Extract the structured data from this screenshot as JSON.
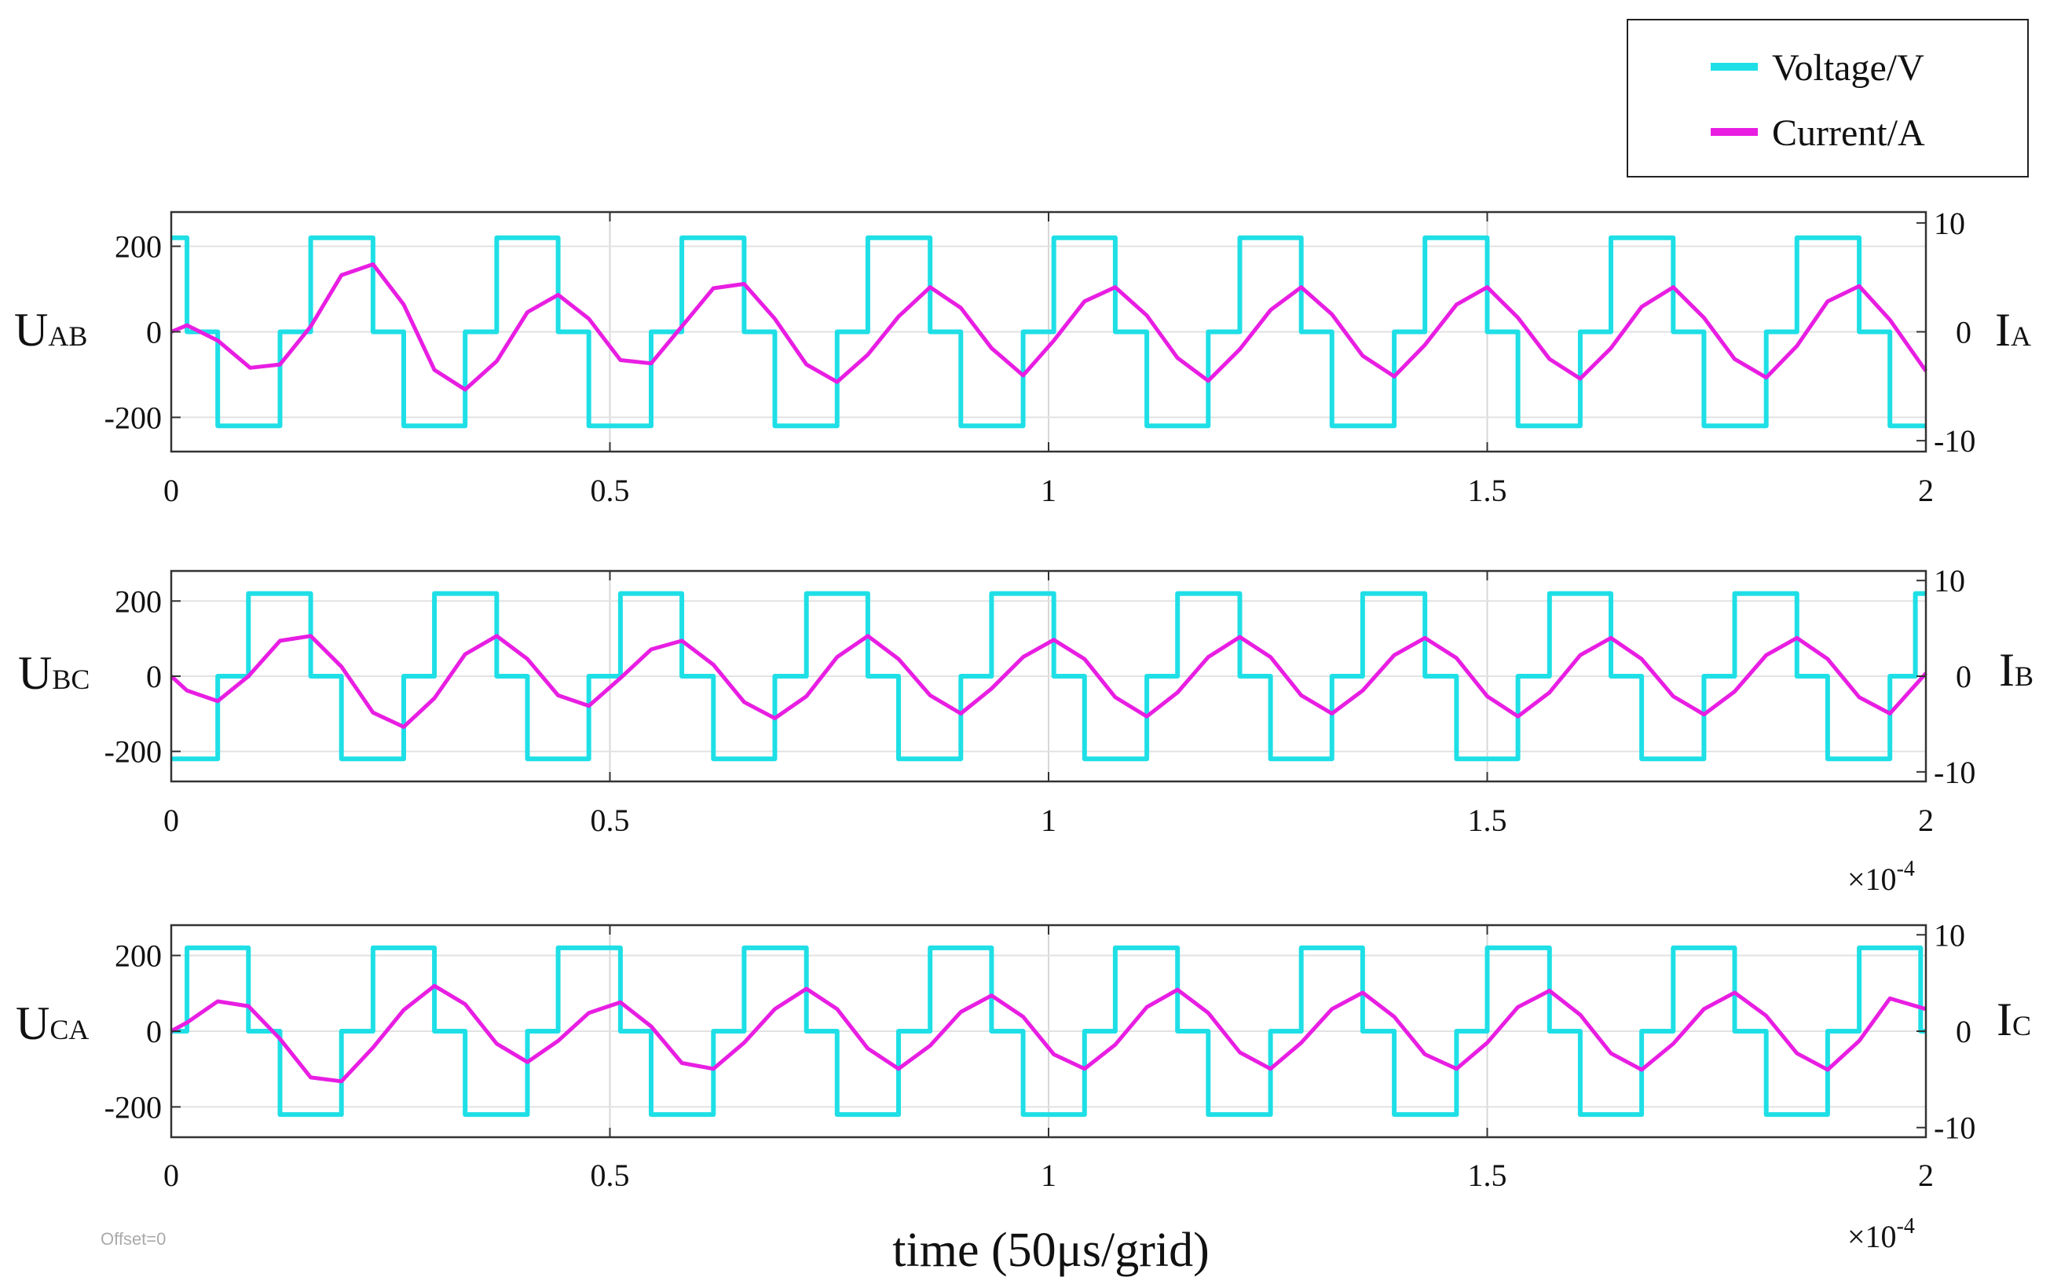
{
  "legend": [
    {
      "label": "Voltage/V",
      "color": "#1fdfe6"
    },
    {
      "label": "Current/A",
      "color": "#e81ee2"
    }
  ],
  "offset_text": "Offset=0",
  "x_multiplier": {
    "base": "×10",
    "exp": "-4"
  },
  "chart_data": {
    "type": "line",
    "xlabel": "time (50μs/grid)",
    "xlim": [
      0,
      2
    ],
    "x_ticks": [
      "0",
      "0.5",
      "1",
      "1.5",
      "2"
    ],
    "grid": true,
    "legend_position": "top-right",
    "panels": [
      {
        "ylabel_left": {
          "main": "U",
          "sub": "AB"
        },
        "ylabel_right": {
          "main": "I",
          "sub": "A"
        },
        "voltage_ticks": [
          "200",
          "0",
          "-200"
        ],
        "current_ticks": [
          "10",
          "0",
          "-10"
        ],
        "voltage_ylim": [
          -280,
          280
        ],
        "current_ylim": [
          -11,
          11
        ],
        "series": [
          {
            "name": "Voltage/V",
            "color": "#1fdfe6",
            "step": true,
            "x": [
              0,
              0.018,
              0.018,
              0.053,
              0.053,
              0.124,
              0.124,
              0.159,
              0.159,
              0.23,
              0.23,
              0.265,
              0.265,
              0.335,
              0.335,
              0.371,
              0.371,
              0.441,
              0.441,
              0.476,
              0.476,
              0.547,
              0.547,
              0.582,
              0.582,
              0.653,
              0.653,
              0.688,
              0.688,
              0.759,
              0.759,
              0.794,
              0.794,
              0.865,
              0.865,
              0.9,
              0.9,
              0.971,
              0.971,
              1.006,
              1.006,
              1.076,
              1.076,
              1.112,
              1.112,
              1.182,
              1.182,
              1.218,
              1.218,
              1.288,
              1.288,
              1.323,
              1.323,
              1.394,
              1.394,
              1.429,
              1.429,
              1.5,
              1.5,
              1.535,
              1.535,
              1.606,
              1.606,
              1.641,
              1.641,
              1.712,
              1.712,
              1.747,
              1.747,
              1.818,
              1.818,
              1.853,
              1.853,
              1.924,
              1.924,
              1.959,
              1.959,
              2.0
            ],
            "y": [
              220,
              220,
              0,
              0,
              -220,
              -220,
              0,
              0,
              220,
              220,
              0,
              0,
              -220,
              -220,
              0,
              0,
              220,
              220,
              0,
              0,
              -220,
              -220,
              0,
              0,
              220,
              220,
              0,
              0,
              -220,
              -220,
              0,
              0,
              220,
              220,
              0,
              0,
              -220,
              -220,
              0,
              0,
              220,
              220,
              0,
              0,
              -220,
              -220,
              0,
              0,
              220,
              220,
              0,
              0,
              -220,
              -220,
              0,
              0,
              220,
              220,
              0,
              0,
              -220,
              -220,
              0,
              0,
              220,
              220,
              0,
              0,
              -220,
              -220,
              0,
              0,
              220,
              220,
              0,
              0,
              -220,
              -220
            ]
          },
          {
            "name": "Current/A",
            "color": "#e81ee2",
            "step": false,
            "x": [
              0,
              0.018,
              0.053,
              0.09,
              0.124,
              0.159,
              0.194,
              0.23,
              0.265,
              0.3,
              0.335,
              0.371,
              0.406,
              0.441,
              0.476,
              0.512,
              0.547,
              0.582,
              0.618,
              0.653,
              0.688,
              0.724,
              0.759,
              0.794,
              0.829,
              0.865,
              0.9,
              0.935,
              0.971,
              1.006,
              1.041,
              1.076,
              1.112,
              1.147,
              1.182,
              1.218,
              1.253,
              1.288,
              1.323,
              1.358,
              1.394,
              1.429,
              1.465,
              1.5,
              1.535,
              1.571,
              1.606,
              1.641,
              1.676,
              1.712,
              1.747,
              1.782,
              1.818,
              1.853,
              1.888,
              1.924,
              1.959,
              2.0
            ],
            "y": [
              0,
              0.6,
              -0.8,
              -3.3,
              -3.0,
              0.5,
              5.2,
              6.2,
              2.5,
              -3.5,
              -5.3,
              -2.7,
              1.8,
              3.4,
              1.2,
              -2.6,
              -2.9,
              0.5,
              4.0,
              4.4,
              1.2,
              -3.0,
              -4.6,
              -2.1,
              1.4,
              4.1,
              2.2,
              -1.5,
              -4.0,
              -0.8,
              2.8,
              4.1,
              1.5,
              -2.4,
              -4.5,
              -1.6,
              2.0,
              4.1,
              1.6,
              -2.2,
              -4.1,
              -1.2,
              2.5,
              4.1,
              1.3,
              -2.5,
              -4.3,
              -1.5,
              2.3,
              4.1,
              1.3,
              -2.5,
              -4.2,
              -1.3,
              2.8,
              4.2,
              1.1,
              -3.6
            ]
          }
        ]
      },
      {
        "ylabel_left": {
          "main": "U",
          "sub": "BC"
        },
        "ylabel_right": {
          "main": "I",
          "sub": "B"
        },
        "voltage_ticks": [
          "200",
          "0",
          "-200"
        ],
        "current_ticks": [
          "10",
          "0",
          "-10"
        ],
        "voltage_ylim": [
          -280,
          280
        ],
        "current_ylim": [
          -11,
          11
        ],
        "series": [
          {
            "name": "Voltage/V",
            "color": "#1fdfe6",
            "step": true,
            "x": [
              0,
              0.053,
              0.053,
              0.088,
              0.088,
              0.159,
              0.159,
              0.194,
              0.194,
              0.265,
              0.265,
              0.3,
              0.3,
              0.371,
              0.371,
              0.406,
              0.406,
              0.476,
              0.476,
              0.512,
              0.512,
              0.582,
              0.582,
              0.618,
              0.618,
              0.688,
              0.688,
              0.724,
              0.724,
              0.794,
              0.794,
              0.829,
              0.829,
              0.9,
              0.9,
              0.935,
              0.935,
              1.006,
              1.006,
              1.041,
              1.041,
              1.112,
              1.112,
              1.147,
              1.147,
              1.218,
              1.218,
              1.253,
              1.253,
              1.323,
              1.323,
              1.358,
              1.358,
              1.429,
              1.429,
              1.465,
              1.465,
              1.535,
              1.535,
              1.571,
              1.571,
              1.641,
              1.641,
              1.676,
              1.676,
              1.747,
              1.747,
              1.782,
              1.782,
              1.853,
              1.853,
              1.888,
              1.888,
              1.959,
              1.959,
              1.988,
              1.988,
              2.0
            ],
            "y": [
              -220,
              -220,
              0,
              0,
              220,
              220,
              0,
              0,
              -220,
              -220,
              0,
              0,
              220,
              220,
              0,
              0,
              -220,
              -220,
              0,
              0,
              220,
              220,
              0,
              0,
              -220,
              -220,
              0,
              0,
              220,
              220,
              0,
              0,
              -220,
              -220,
              0,
              0,
              220,
              220,
              0,
              0,
              -220,
              -220,
              0,
              0,
              220,
              220,
              0,
              0,
              -220,
              -220,
              0,
              0,
              220,
              220,
              0,
              0,
              -220,
              -220,
              0,
              0,
              220,
              220,
              0,
              0,
              -220,
              -220,
              0,
              0,
              220,
              220,
              0,
              0,
              -220,
              -220,
              0,
              0,
              220,
              220
            ]
          },
          {
            "name": "Current/A",
            "color": "#e81ee2",
            "step": false,
            "x": [
              0,
              0.018,
              0.053,
              0.088,
              0.124,
              0.159,
              0.194,
              0.23,
              0.265,
              0.3,
              0.335,
              0.371,
              0.406,
              0.441,
              0.476,
              0.512,
              0.547,
              0.582,
              0.618,
              0.653,
              0.688,
              0.724,
              0.759,
              0.794,
              0.829,
              0.865,
              0.9,
              0.935,
              0.971,
              1.006,
              1.041,
              1.076,
              1.112,
              1.147,
              1.182,
              1.218,
              1.253,
              1.288,
              1.323,
              1.358,
              1.394,
              1.429,
              1.465,
              1.5,
              1.535,
              1.571,
              1.606,
              1.641,
              1.676,
              1.712,
              1.747,
              1.782,
              1.818,
              1.853,
              1.888,
              1.924,
              1.959,
              2.0
            ],
            "y": [
              0,
              -1.5,
              -2.6,
              0,
              3.7,
              4.2,
              1.0,
              -3.8,
              -5.3,
              -2.3,
              2.3,
              4.2,
              1.8,
              -2.0,
              -3.1,
              -0.2,
              2.8,
              3.7,
              1.2,
              -2.7,
              -4.4,
              -2.1,
              2.0,
              4.2,
              1.8,
              -2.0,
              -3.9,
              -1.3,
              2.0,
              3.8,
              1.8,
              -2.2,
              -4.2,
              -1.7,
              2.0,
              4.1,
              2.0,
              -2.0,
              -3.9,
              -1.5,
              2.2,
              4.0,
              1.9,
              -2.1,
              -4.2,
              -1.7,
              2.2,
              4.0,
              1.8,
              -2.1,
              -4.0,
              -1.6,
              2.2,
              4.0,
              1.8,
              -2.2,
              -3.9,
              0.3
            ]
          }
        ]
      },
      {
        "ylabel_left": {
          "main": "U",
          "sub": "CA"
        },
        "ylabel_right": {
          "main": "I",
          "sub": "C"
        },
        "voltage_ticks": [
          "200",
          "0",
          "-200"
        ],
        "current_ticks": [
          "10",
          "0",
          "-10"
        ],
        "voltage_ylim": [
          -280,
          280
        ],
        "current_ylim": [
          -11,
          11
        ],
        "series": [
          {
            "name": "Voltage/V",
            "color": "#1fdfe6",
            "step": true,
            "x": [
              0,
              0.018,
              0.018,
              0.088,
              0.088,
              0.124,
              0.124,
              0.194,
              0.194,
              0.23,
              0.23,
              0.3,
              0.3,
              0.335,
              0.335,
              0.406,
              0.406,
              0.441,
              0.441,
              0.512,
              0.512,
              0.547,
              0.547,
              0.618,
              0.618,
              0.653,
              0.653,
              0.724,
              0.724,
              0.759,
              0.759,
              0.829,
              0.829,
              0.865,
              0.865,
              0.935,
              0.935,
              0.971,
              0.971,
              1.041,
              1.041,
              1.076,
              1.076,
              1.147,
              1.147,
              1.182,
              1.182,
              1.253,
              1.253,
              1.288,
              1.288,
              1.358,
              1.358,
              1.394,
              1.394,
              1.465,
              1.465,
              1.5,
              1.5,
              1.571,
              1.571,
              1.606,
              1.606,
              1.676,
              1.676,
              1.712,
              1.712,
              1.782,
              1.782,
              1.818,
              1.818,
              1.888,
              1.888,
              1.924,
              1.924,
              1.994,
              1.994,
              2.0
            ],
            "y": [
              0,
              0,
              220,
              220,
              0,
              0,
              -220,
              -220,
              0,
              0,
              220,
              220,
              0,
              0,
              -220,
              -220,
              0,
              0,
              220,
              220,
              0,
              0,
              -220,
              -220,
              0,
              0,
              220,
              220,
              0,
              0,
              -220,
              -220,
              0,
              0,
              220,
              220,
              0,
              0,
              -220,
              -220,
              0,
              0,
              220,
              220,
              0,
              0,
              -220,
              -220,
              0,
              0,
              220,
              220,
              0,
              0,
              -220,
              -220,
              0,
              0,
              220,
              220,
              0,
              0,
              -220,
              -220,
              0,
              0,
              220,
              220,
              0,
              0,
              -220,
              -220,
              0,
              0,
              220,
              220,
              0,
              0
            ]
          },
          {
            "name": "Current/A",
            "color": "#e81ee2",
            "step": false,
            "x": [
              0,
              0.018,
              0.053,
              0.088,
              0.124,
              0.159,
              0.194,
              0.23,
              0.265,
              0.3,
              0.335,
              0.371,
              0.406,
              0.441,
              0.476,
              0.512,
              0.547,
              0.582,
              0.618,
              0.653,
              0.688,
              0.724,
              0.759,
              0.794,
              0.829,
              0.865,
              0.9,
              0.935,
              0.971,
              1.006,
              1.041,
              1.076,
              1.112,
              1.147,
              1.182,
              1.218,
              1.253,
              1.288,
              1.323,
              1.358,
              1.394,
              1.429,
              1.465,
              1.5,
              1.535,
              1.571,
              1.606,
              1.641,
              1.676,
              1.712,
              1.747,
              1.782,
              1.818,
              1.853,
              1.888,
              1.924,
              1.959,
              2.0
            ],
            "y": [
              0,
              0.9,
              3.1,
              2.6,
              -0.8,
              -4.8,
              -5.2,
              -1.7,
              2.2,
              4.7,
              2.8,
              -1.3,
              -3.2,
              -1.0,
              1.9,
              3.0,
              0.5,
              -3.3,
              -3.9,
              -1.2,
              2.3,
              4.4,
              2.3,
              -1.8,
              -3.9,
              -1.5,
              2.0,
              3.7,
              1.5,
              -2.4,
              -3.9,
              -1.4,
              2.5,
              4.3,
              1.9,
              -2.2,
              -3.9,
              -1.2,
              2.3,
              4.0,
              1.5,
              -2.4,
              -3.9,
              -1.2,
              2.5,
              4.2,
              1.7,
              -2.3,
              -4.0,
              -1.3,
              2.3,
              4.0,
              1.6,
              -2.3,
              -4.0,
              -1.0,
              3.4,
              2.3
            ]
          }
        ]
      }
    ]
  }
}
